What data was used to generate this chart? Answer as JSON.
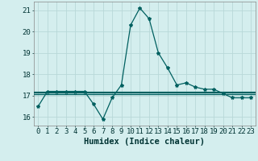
{
  "xlabel": "Humidex (Indice chaleur)",
  "x": [
    0,
    1,
    2,
    3,
    4,
    5,
    6,
    7,
    8,
    9,
    10,
    11,
    12,
    13,
    14,
    15,
    16,
    17,
    18,
    19,
    20,
    21,
    22,
    23
  ],
  "y_main": [
    16.5,
    17.2,
    17.2,
    17.2,
    17.2,
    17.2,
    16.6,
    15.9,
    16.9,
    17.5,
    20.3,
    21.1,
    20.6,
    19.0,
    18.3,
    17.5,
    17.6,
    17.4,
    17.3,
    17.3,
    17.1,
    16.9,
    16.9,
    16.9
  ],
  "y_flat1": 17.2,
  "y_flat2": 17.15,
  "y_flat3": 17.05,
  "line_color": "#006060",
  "bg_color": "#d4eeee",
  "grid_color": "#b8d8d8",
  "ylim": [
    15.6,
    21.4
  ],
  "yticks": [
    16,
    17,
    18,
    19,
    20,
    21
  ],
  "xticks": [
    0,
    1,
    2,
    3,
    4,
    5,
    6,
    7,
    8,
    9,
    10,
    11,
    12,
    13,
    14,
    15,
    16,
    17,
    18,
    19,
    20,
    21,
    22,
    23
  ],
  "tick_fontsize": 6.5,
  "xlabel_fontsize": 7.5,
  "marker": "*",
  "marker_size": 3,
  "linewidth": 0.9
}
